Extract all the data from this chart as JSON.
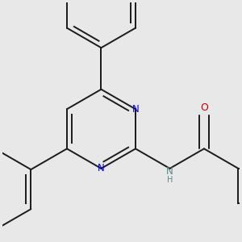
{
  "background_color": "#e8e8e8",
  "bond_color": "#1a1a1a",
  "nitrogen_color": "#0000ff",
  "oxygen_color": "#cc0000",
  "nh_color": "#558888",
  "line_width": 1.4,
  "dbo": 0.015,
  "figsize": [
    3.0,
    3.0
  ],
  "dpi": 100,
  "xlim": [
    -2.5,
    3.5
  ],
  "ylim": [
    -2.8,
    3.2
  ]
}
